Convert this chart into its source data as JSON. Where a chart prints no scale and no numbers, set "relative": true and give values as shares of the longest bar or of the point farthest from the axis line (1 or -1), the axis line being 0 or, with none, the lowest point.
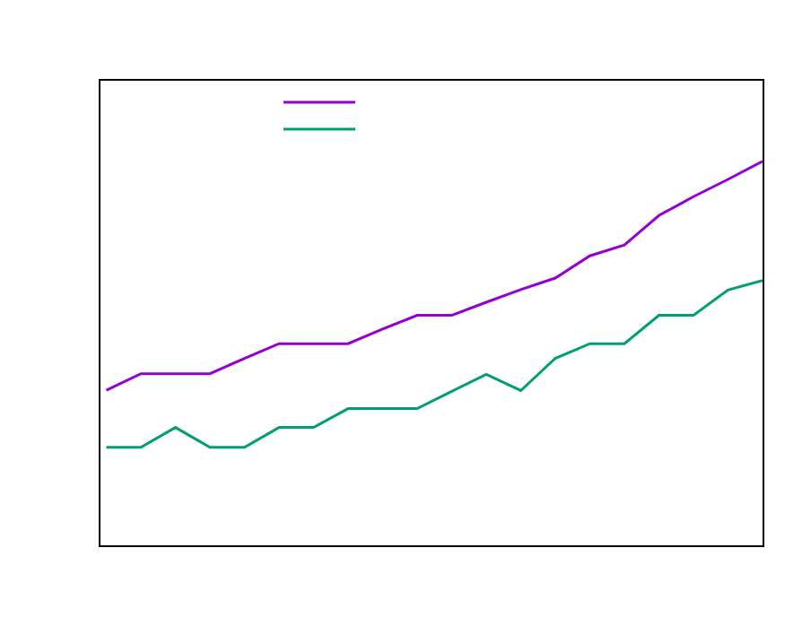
{
  "chart_data": {
    "type": "line",
    "relative": true,
    "grid": false,
    "marker": "none",
    "line_style": "solid",
    "categories": [
      null,
      null,
      null,
      null,
      null,
      null,
      null,
      null,
      null,
      null,
      null,
      null,
      null,
      null,
      null,
      null,
      null,
      null,
      null,
      null
    ],
    "series": [
      {
        "color": "#9400d3",
        "values": [
          0.404,
          0.447,
          0.447,
          0.447,
          0.487,
          0.525,
          0.525,
          0.525,
          0.563,
          0.599,
          0.599,
          0.633,
          0.666,
          0.696,
          0.754,
          0.782,
          0.859,
          0.908,
          0.953,
          1
        ]
      },
      {
        "color": "#009e73",
        "values": [
          0.255,
          0.255,
          0.307,
          0.255,
          0.255,
          0.307,
          0.307,
          0.356,
          0.356,
          0.356,
          0.401,
          0.445,
          0.403,
          0.487,
          0.525,
          0.525,
          0.599,
          0.599,
          0.665,
          0.69
        ]
      }
    ]
  }
}
